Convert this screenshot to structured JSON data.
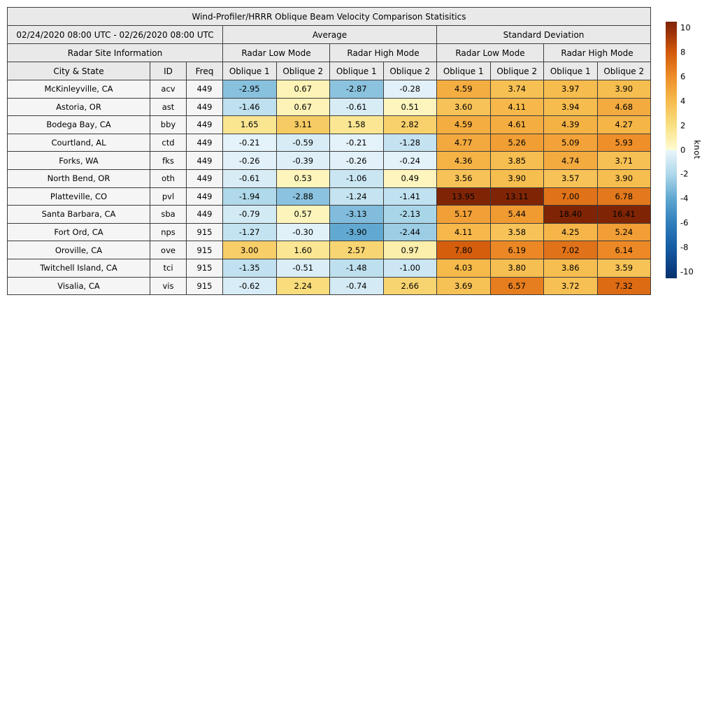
{
  "title": "Wind-Profiler/HRRR Oblique Beam Velocity Comparison Statisitics",
  "header": {
    "date_range": "02/24/2020 08:00 UTC - 02/26/2020 08:00 UTC",
    "group_average": "Average",
    "group_std": "Standard Deviation",
    "site_info": "Radar Site Information",
    "mode_low": "Radar Low Mode",
    "mode_high": "Radar High Mode",
    "col_city": "City & State",
    "col_id": "ID",
    "col_freq": "Freq",
    "col_oblique1": "Oblique 1",
    "col_oblique2": "Oblique 2"
  },
  "chart_data": {
    "type": "heatmap",
    "title": "Wind-Profiler/HRRR Oblique Beam Velocity Comparison Statisitics",
    "unit": "knot",
    "value_columns": [
      "Average Radar Low Mode Oblique 1",
      "Average Radar Low Mode Oblique 2",
      "Average Radar High Mode Oblique 1",
      "Average Radar High Mode Oblique 2",
      "Standard Deviation Radar Low Mode Oblique 1",
      "Standard Deviation Radar Low Mode Oblique 2",
      "Standard Deviation Radar High Mode Oblique 1",
      "Standard Deviation Radar High Mode Oblique 2"
    ],
    "rows": [
      {
        "city": "McKinleyville, CA",
        "id": "acv",
        "freq": "449",
        "values": [
          -2.95,
          0.67,
          -2.87,
          -0.28,
          4.59,
          3.74,
          3.97,
          3.9
        ]
      },
      {
        "city": "Astoria, OR",
        "id": "ast",
        "freq": "449",
        "values": [
          -1.46,
          0.67,
          -0.61,
          0.51,
          3.6,
          4.11,
          3.94,
          4.68
        ]
      },
      {
        "city": "Bodega Bay, CA",
        "id": "bby",
        "freq": "449",
        "values": [
          1.65,
          3.11,
          1.58,
          2.82,
          4.59,
          4.61,
          4.39,
          4.27
        ]
      },
      {
        "city": "Courtland, AL",
        "id": "ctd",
        "freq": "449",
        "values": [
          -0.21,
          -0.59,
          -0.21,
          -1.28,
          4.77,
          5.26,
          5.09,
          5.93
        ]
      },
      {
        "city": "Forks, WA",
        "id": "fks",
        "freq": "449",
        "values": [
          -0.26,
          -0.39,
          -0.26,
          -0.24,
          4.36,
          3.85,
          4.74,
          3.71
        ]
      },
      {
        "city": "North Bend, OR",
        "id": "oth",
        "freq": "449",
        "values": [
          -0.61,
          0.53,
          -1.06,
          0.49,
          3.56,
          3.9,
          3.57,
          3.9
        ]
      },
      {
        "city": "Platteville, CO",
        "id": "pvl",
        "freq": "449",
        "values": [
          -1.94,
          -2.88,
          -1.24,
          -1.41,
          13.95,
          13.11,
          7.0,
          6.78
        ]
      },
      {
        "city": "Santa Barbara, CA",
        "id": "sba",
        "freq": "449",
        "values": [
          -0.79,
          0.57,
          -3.13,
          -2.13,
          5.17,
          5.44,
          18.4,
          16.41
        ]
      },
      {
        "city": "Fort Ord, CA",
        "id": "nps",
        "freq": "915",
        "values": [
          -1.27,
          -0.3,
          -3.9,
          -2.44,
          4.11,
          3.58,
          4.25,
          5.24
        ]
      },
      {
        "city": "Oroville, CA",
        "id": "ove",
        "freq": "915",
        "values": [
          3.0,
          1.6,
          2.57,
          0.97,
          7.8,
          6.19,
          7.02,
          6.14
        ]
      },
      {
        "city": "Twitchell Island, CA",
        "id": "tci",
        "freq": "915",
        "values": [
          -1.35,
          -0.51,
          -1.48,
          -1.0,
          4.03,
          3.8,
          3.86,
          3.59
        ]
      },
      {
        "city": "Visalia, CA",
        "id": "vis",
        "freq": "915",
        "values": [
          -0.62,
          2.24,
          -0.74,
          2.66,
          3.69,
          6.57,
          3.72,
          7.32
        ]
      }
    ]
  },
  "colorbar": {
    "label": "knot",
    "ticks": [
      10,
      8,
      6,
      4,
      2,
      0,
      -2,
      -4,
      -6,
      -8,
      -10
    ],
    "vmin": -10.5,
    "vmax": 10.5,
    "positive_anchors": [
      [
        0,
        "#fffcd1"
      ],
      [
        2,
        "#f9e083"
      ],
      [
        4,
        "#f6bb4c"
      ],
      [
        6,
        "#ee8d28"
      ],
      [
        8,
        "#d2590a"
      ],
      [
        10,
        "#8e2a08"
      ],
      [
        10.5,
        "#7f2505"
      ]
    ],
    "negative_anchors": [
      [
        0,
        "#eaf5fb"
      ],
      [
        2,
        "#aed8ea"
      ],
      [
        4,
        "#5ea7d1"
      ],
      [
        6,
        "#2e7ebc"
      ],
      [
        8,
        "#155da4"
      ],
      [
        10,
        "#09397a"
      ],
      [
        10.5,
        "#083269"
      ]
    ]
  },
  "style": {
    "header_bg": "#e9e9e9",
    "label_cell_bg": "#f5f5f5",
    "border_color": "#3c3c3c"
  }
}
